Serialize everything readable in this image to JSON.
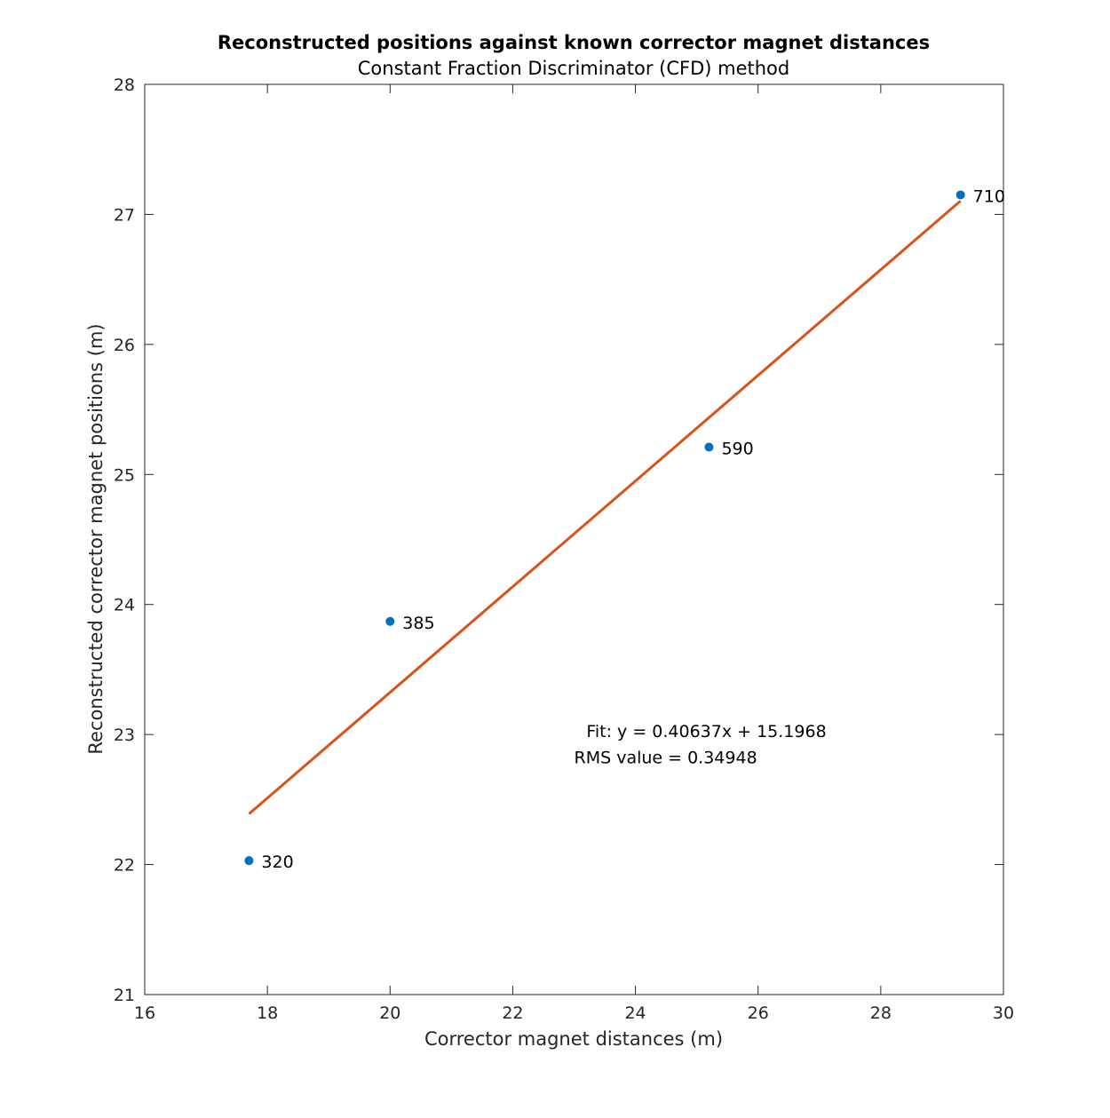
{
  "chart_data": {
    "type": "scatter",
    "title": "Reconstructed positions against known corrector magnet distances",
    "subtitle": "Constant Fraction Discriminator (CFD) method",
    "xlabel": "Corrector magnet distances (m)",
    "ylabel": "Reconstructed corrector magnet positions (m)",
    "xlim": [
      16,
      30
    ],
    "ylim": [
      21,
      28
    ],
    "xticks": [
      "16",
      "18",
      "20",
      "22",
      "24",
      "26",
      "28",
      "30"
    ],
    "yticks": [
      "21",
      "22",
      "23",
      "24",
      "25",
      "26",
      "27",
      "28"
    ],
    "grid": false,
    "points": [
      {
        "x": 17.7,
        "y": 22.03,
        "label": "320"
      },
      {
        "x": 20.0,
        "y": 23.87,
        "label": "385"
      },
      {
        "x": 25.2,
        "y": 25.21,
        "label": "590"
      },
      {
        "x": 29.3,
        "y": 27.15,
        "label": "710"
      }
    ],
    "fit": {
      "slope": 0.40637,
      "intercept": 15.1968,
      "x_range": [
        17.7,
        29.3
      ]
    },
    "annotations": [
      {
        "text": "Fit: y = 0.40637x + 15.1968",
        "x": 23.2,
        "y": 22.98
      },
      {
        "text": "RMS value = 0.34948",
        "x": 23.0,
        "y": 22.78
      }
    ],
    "colors": {
      "points": "#0072BD",
      "fit": "#D95319",
      "axes": "#262626"
    }
  }
}
